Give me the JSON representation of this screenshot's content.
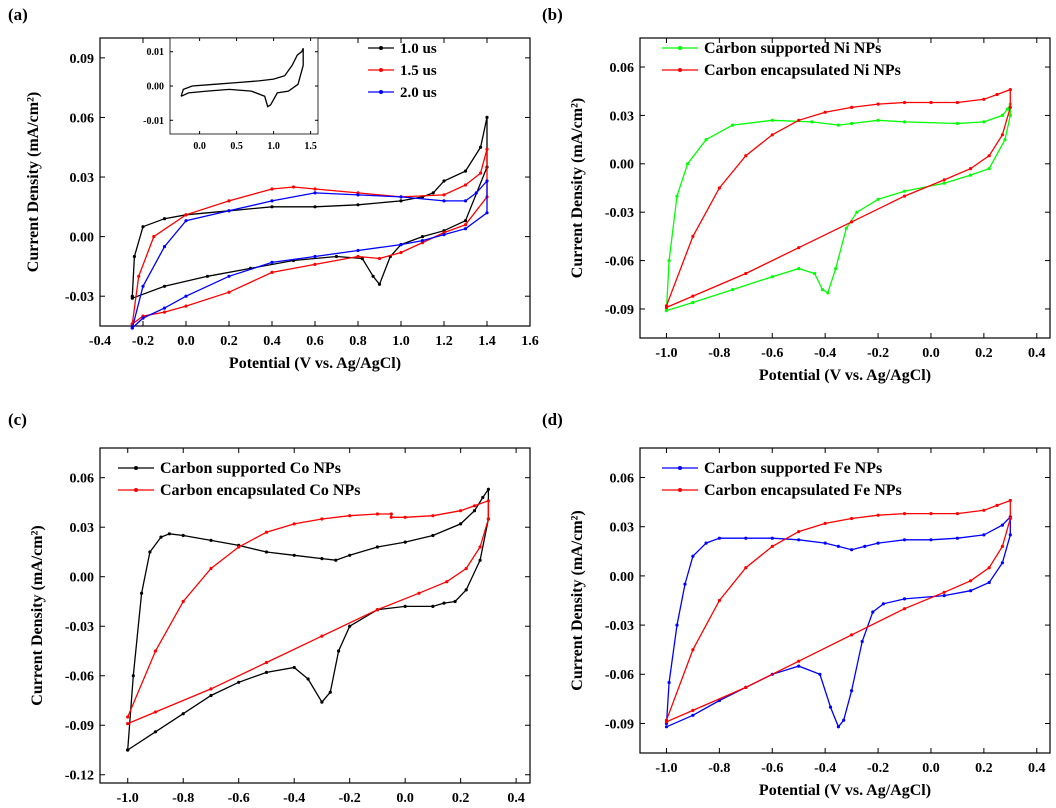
{
  "figure": {
    "panels": [
      {
        "id": "a",
        "label": "(a)"
      },
      {
        "id": "b",
        "label": "(b)"
      },
      {
        "id": "c",
        "label": "(c)"
      },
      {
        "id": "d",
        "label": "(d)"
      }
    ]
  },
  "chart_data": [
    {
      "panel": "(a)",
      "type": "line",
      "xlabel": "Potential (V vs. Ag/AgCl)",
      "ylabel": "Current Density (mA/cm²)",
      "xlim": [
        -0.4,
        1.6
      ],
      "ylim": [
        -0.045,
        0.1
      ],
      "xticks": [
        -0.4,
        -0.2,
        0.0,
        0.2,
        0.4,
        0.6,
        0.8,
        1.0,
        1.2,
        1.4,
        1.6
      ],
      "xtick_labels": [
        "-0.4",
        "-0.2",
        "0.0",
        "0.2",
        "0.4",
        "0.6",
        "0.8",
        "1.0",
        "1.2",
        "1.4",
        "1.6"
      ],
      "yticks": [
        -0.03,
        0.0,
        0.03,
        0.06,
        0.09
      ],
      "ytick_labels": [
        "-0.03",
        "0.00",
        "0.03",
        "0.06",
        "0.09"
      ],
      "legend_position": "top-right",
      "series": [
        {
          "name": "1.0 us",
          "color": "#000000",
          "x": [
            -0.25,
            -0.24,
            -0.2,
            -0.1,
            0.0,
            0.2,
            0.4,
            0.6,
            0.8,
            1.0,
            1.1,
            1.15,
            1.2,
            1.3,
            1.37,
            1.4,
            1.4,
            1.3,
            1.2,
            1.1,
            1.0,
            0.95,
            0.9,
            0.87,
            0.82,
            0.7,
            0.5,
            0.3,
            0.1,
            -0.1,
            -0.25
          ],
          "y": [
            -0.03,
            -0.01,
            0.005,
            0.009,
            0.011,
            0.013,
            0.015,
            0.015,
            0.016,
            0.018,
            0.02,
            0.022,
            0.028,
            0.033,
            0.045,
            0.06,
            0.035,
            0.008,
            0.003,
            0.0,
            -0.004,
            -0.01,
            -0.024,
            -0.02,
            -0.011,
            -0.01,
            -0.012,
            -0.016,
            -0.02,
            -0.025,
            -0.031
          ]
        },
        {
          "name": "1.5 us",
          "color": "#ff0000",
          "x": [
            -0.25,
            -0.22,
            -0.15,
            0.0,
            0.2,
            0.4,
            0.5,
            0.6,
            0.8,
            1.0,
            1.2,
            1.3,
            1.37,
            1.4,
            1.4,
            1.3,
            1.2,
            1.1,
            1.0,
            0.9,
            0.8,
            0.6,
            0.4,
            0.2,
            0.0,
            -0.1,
            -0.2,
            -0.25
          ],
          "y": [
            -0.044,
            -0.02,
            0.0,
            0.011,
            0.018,
            0.024,
            0.025,
            0.024,
            0.022,
            0.02,
            0.021,
            0.026,
            0.032,
            0.044,
            0.02,
            0.006,
            0.002,
            -0.003,
            -0.008,
            -0.011,
            -0.01,
            -0.014,
            -0.018,
            -0.028,
            -0.035,
            -0.038,
            -0.04,
            -0.044
          ]
        },
        {
          "name": "2.0 us",
          "color": "#0000ff",
          "x": [
            -0.25,
            -0.2,
            -0.1,
            0.0,
            0.2,
            0.4,
            0.6,
            0.8,
            1.0,
            1.2,
            1.3,
            1.35,
            1.4,
            1.4,
            1.3,
            1.2,
            1.1,
            1.0,
            0.8,
            0.6,
            0.4,
            0.2,
            0.0,
            -0.1,
            -0.2,
            -0.25
          ],
          "y": [
            -0.046,
            -0.025,
            -0.005,
            0.008,
            0.013,
            0.018,
            0.022,
            0.021,
            0.02,
            0.018,
            0.018,
            0.022,
            0.028,
            0.012,
            0.004,
            0.001,
            -0.002,
            -0.004,
            -0.007,
            -0.01,
            -0.013,
            -0.02,
            -0.03,
            -0.036,
            -0.041,
            -0.046
          ]
        }
      ],
      "inset": {
        "xlim": [
          -0.4,
          1.6
        ],
        "ylim": [
          -0.014,
          0.014
        ],
        "xticks": [
          0.0,
          0.5,
          1.0,
          1.5
        ],
        "xtick_labels": [
          "0.0",
          "0.5",
          "1.0",
          "1.5"
        ],
        "yticks": [
          -0.01,
          0.0,
          0.01
        ],
        "ytick_labels": [
          "-0.01",
          "0.00",
          "0.01"
        ],
        "x": [
          -0.25,
          -0.22,
          -0.1,
          0.2,
          0.5,
          0.8,
          1.0,
          1.15,
          1.25,
          1.32,
          1.38,
          1.4,
          1.4,
          1.33,
          1.2,
          1.05,
          0.96,
          0.92,
          0.88,
          0.7,
          0.4,
          0.1,
          -0.15,
          -0.25
        ],
        "y": [
          -0.003,
          -0.001,
          0.0,
          0.0005,
          0.001,
          0.0015,
          0.002,
          0.003,
          0.006,
          0.009,
          0.01,
          0.011,
          0.006,
          0.0005,
          -0.0015,
          -0.002,
          -0.0055,
          -0.006,
          -0.003,
          -0.0015,
          -0.001,
          -0.0015,
          -0.002,
          -0.003
        ]
      }
    },
    {
      "panel": "(b)",
      "type": "line",
      "xlabel": "Potential (V vs. Ag/AgCl)",
      "ylabel": "Current Density (mA/cm²)",
      "xlim": [
        -1.1,
        0.45
      ],
      "ylim": [
        -0.108,
        0.078
      ],
      "xticks": [
        -1.0,
        -0.8,
        -0.6,
        -0.4,
        -0.2,
        0.0,
        0.2,
        0.4
      ],
      "xtick_labels": [
        "-1.0",
        "-0.8",
        "-0.6",
        "-0.4",
        "-0.2",
        "0.0",
        "0.2",
        "0.4"
      ],
      "yticks": [
        -0.09,
        -0.06,
        -0.03,
        0.0,
        0.03,
        0.06
      ],
      "ytick_labels": [
        "-0.09",
        "-0.06",
        "-0.03",
        "0.00",
        "0.03",
        "0.06"
      ],
      "legend_position": "top-left",
      "series": [
        {
          "name": "Carbon supported Ni NPs",
          "color": "#00ff00",
          "x": [
            -1.0,
            -0.99,
            -0.96,
            -0.92,
            -0.85,
            -0.75,
            -0.6,
            -0.45,
            -0.35,
            -0.3,
            -0.2,
            -0.1,
            0.1,
            0.2,
            0.27,
            0.29,
            0.3,
            0.3,
            0.28,
            0.22,
            0.15,
            0.05,
            -0.1,
            -0.2,
            -0.28,
            -0.32,
            -0.36,
            -0.39,
            -0.41,
            -0.44,
            -0.5,
            -0.6,
            -0.75,
            -0.9,
            -1.0
          ],
          "y": [
            -0.09,
            -0.06,
            -0.02,
            0.0,
            0.015,
            0.024,
            0.027,
            0.026,
            0.024,
            0.025,
            0.027,
            0.026,
            0.025,
            0.026,
            0.03,
            0.034,
            0.037,
            0.03,
            0.015,
            -0.003,
            -0.007,
            -0.012,
            -0.017,
            -0.022,
            -0.03,
            -0.04,
            -0.065,
            -0.08,
            -0.078,
            -0.068,
            -0.065,
            -0.07,
            -0.078,
            -0.086,
            -0.091
          ]
        },
        {
          "name": "Carbon encapsulated Ni NPs",
          "color": "#ff0000",
          "x": [
            -1.0,
            -0.9,
            -0.8,
            -0.7,
            -0.6,
            -0.5,
            -0.4,
            -0.3,
            -0.2,
            -0.1,
            0.0,
            0.1,
            0.2,
            0.25,
            0.3,
            0.3,
            0.27,
            0.22,
            0.15,
            0.05,
            -0.1,
            -0.3,
            -0.5,
            -0.7,
            -0.9,
            -1.0
          ],
          "y": [
            -0.088,
            -0.045,
            -0.015,
            0.005,
            0.018,
            0.027,
            0.032,
            0.035,
            0.037,
            0.038,
            0.038,
            0.038,
            0.04,
            0.043,
            0.046,
            0.035,
            0.018,
            0.005,
            -0.003,
            -0.01,
            -0.02,
            -0.036,
            -0.052,
            -0.068,
            -0.082,
            -0.089
          ]
        }
      ]
    },
    {
      "panel": "(c)",
      "type": "line",
      "xlabel": "Potential (V vs. Ag/AgCl)",
      "ylabel": "Current Density (mA/cm²)",
      "xlim": [
        -1.1,
        0.45
      ],
      "ylim": [
        -0.125,
        0.078
      ],
      "xticks": [
        -1.0,
        -0.8,
        -0.6,
        -0.4,
        -0.2,
        0.0,
        0.2,
        0.4
      ],
      "xtick_labels": [
        "-1.0",
        "-0.8",
        "-0.6",
        "-0.4",
        "-0.2",
        "0.0",
        "0.2",
        "0.4"
      ],
      "yticks": [
        -0.12,
        -0.09,
        -0.06,
        -0.03,
        0.0,
        0.03,
        0.06
      ],
      "ytick_labels": [
        "-0.12",
        "-0.09",
        "-0.06",
        "-0.03",
        "0.00",
        "0.03",
        "0.06"
      ],
      "legend_position": "top-left",
      "series": [
        {
          "name": "Carbon supported Co NPs",
          "color": "#000000",
          "x": [
            -1.0,
            -0.98,
            -0.95,
            -0.92,
            -0.88,
            -0.85,
            -0.8,
            -0.7,
            -0.6,
            -0.5,
            -0.4,
            -0.3,
            -0.25,
            -0.2,
            -0.1,
            0.0,
            0.1,
            0.2,
            0.25,
            0.28,
            0.3,
            0.3,
            0.27,
            0.22,
            0.18,
            0.14,
            0.1,
            0.0,
            -0.1,
            -0.2,
            -0.24,
            -0.27,
            -0.3,
            -0.35,
            -0.4,
            -0.5,
            -0.6,
            -0.7,
            -0.8,
            -0.9,
            -1.0
          ],
          "y": [
            -0.105,
            -0.06,
            -0.01,
            0.015,
            0.024,
            0.026,
            0.025,
            0.022,
            0.019,
            0.015,
            0.013,
            0.011,
            0.01,
            0.013,
            0.018,
            0.021,
            0.025,
            0.032,
            0.04,
            0.048,
            0.053,
            0.035,
            0.01,
            -0.008,
            -0.015,
            -0.016,
            -0.018,
            -0.018,
            -0.02,
            -0.03,
            -0.045,
            -0.07,
            -0.076,
            -0.062,
            -0.055,
            -0.058,
            -0.064,
            -0.072,
            -0.083,
            -0.094,
            -0.105
          ]
        },
        {
          "name": "Carbon encapsulated Co NPs",
          "color": "#ff0000",
          "x": [
            -1.0,
            -0.9,
            -0.8,
            -0.7,
            -0.6,
            -0.5,
            -0.4,
            -0.3,
            -0.2,
            -0.1,
            -0.05,
            -0.05,
            0.0,
            0.1,
            0.2,
            0.25,
            0.3,
            0.3,
            0.27,
            0.22,
            0.15,
            0.05,
            -0.1,
            -0.3,
            -0.5,
            -0.7,
            -0.9,
            -1.0
          ],
          "y": [
            -0.085,
            -0.045,
            -0.015,
            0.005,
            0.018,
            0.027,
            0.032,
            0.035,
            0.037,
            0.038,
            0.038,
            0.036,
            0.036,
            0.037,
            0.04,
            0.043,
            0.046,
            0.035,
            0.018,
            0.005,
            -0.003,
            -0.01,
            -0.02,
            -0.036,
            -0.052,
            -0.068,
            -0.082,
            -0.089
          ]
        }
      ]
    },
    {
      "panel": "(d)",
      "type": "line",
      "xlabel": "Potential (V vs. Ag/AgCl)",
      "ylabel": "Current Density (mA/cm²)",
      "xlim": [
        -1.1,
        0.45
      ],
      "ylim": [
        -0.108,
        0.078
      ],
      "xticks": [
        -1.0,
        -0.8,
        -0.6,
        -0.4,
        -0.2,
        0.0,
        0.2,
        0.4
      ],
      "xtick_labels": [
        "-1.0",
        "-0.8",
        "-0.6",
        "-0.4",
        "-0.2",
        "0.0",
        "0.2",
        "0.4"
      ],
      "yticks": [
        -0.09,
        -0.06,
        -0.03,
        0.0,
        0.03,
        0.06
      ],
      "ytick_labels": [
        "-0.09",
        "-0.06",
        "-0.03",
        "0.00",
        "0.03",
        "0.06"
      ],
      "legend_position": "top-left",
      "series": [
        {
          "name": "Carbon supported Fe NPs",
          "color": "#0000ff",
          "x": [
            -1.0,
            -0.99,
            -0.96,
            -0.93,
            -0.9,
            -0.85,
            -0.8,
            -0.7,
            -0.6,
            -0.5,
            -0.4,
            -0.35,
            -0.3,
            -0.25,
            -0.2,
            -0.1,
            0.0,
            0.1,
            0.2,
            0.27,
            0.3,
            0.3,
            0.27,
            0.22,
            0.15,
            0.05,
            -0.1,
            -0.18,
            -0.22,
            -0.26,
            -0.3,
            -0.33,
            -0.35,
            -0.38,
            -0.42,
            -0.5,
            -0.6,
            -0.7,
            -0.8,
            -0.9,
            -1.0
          ],
          "y": [
            -0.09,
            -0.065,
            -0.03,
            -0.005,
            0.012,
            0.02,
            0.023,
            0.023,
            0.023,
            0.022,
            0.02,
            0.018,
            0.016,
            0.018,
            0.02,
            0.022,
            0.022,
            0.023,
            0.025,
            0.031,
            0.036,
            0.025,
            0.008,
            -0.004,
            -0.009,
            -0.012,
            -0.014,
            -0.017,
            -0.022,
            -0.04,
            -0.07,
            -0.088,
            -0.092,
            -0.08,
            -0.06,
            -0.055,
            -0.06,
            -0.068,
            -0.076,
            -0.085,
            -0.092
          ]
        },
        {
          "name": "Carbon encapsulated Fe NPs",
          "color": "#ff0000",
          "x": [
            -1.0,
            -0.9,
            -0.8,
            -0.7,
            -0.6,
            -0.5,
            -0.4,
            -0.3,
            -0.2,
            -0.1,
            0.0,
            0.1,
            0.2,
            0.25,
            0.3,
            0.3,
            0.27,
            0.22,
            0.15,
            0.05,
            -0.1,
            -0.3,
            -0.5,
            -0.7,
            -0.9,
            -1.0
          ],
          "y": [
            -0.088,
            -0.045,
            -0.015,
            0.005,
            0.018,
            0.027,
            0.032,
            0.035,
            0.037,
            0.038,
            0.038,
            0.038,
            0.04,
            0.043,
            0.046,
            0.035,
            0.018,
            0.005,
            -0.003,
            -0.01,
            -0.02,
            -0.036,
            -0.052,
            -0.068,
            -0.082,
            -0.089
          ]
        }
      ]
    }
  ]
}
